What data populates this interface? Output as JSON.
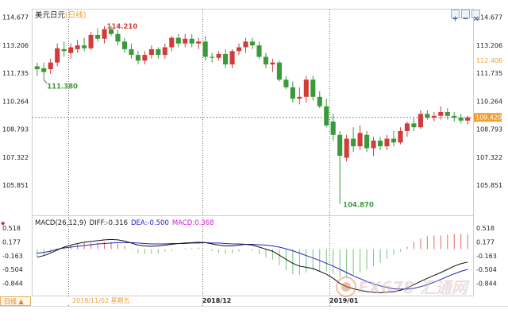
{
  "header": {
    "symbol": "美元日元",
    "timeframe": "(日线)"
  },
  "controls": [
    {
      "name": "zoom-in-button",
      "glyph": "+"
    },
    {
      "name": "zoom-out-button",
      "glyph": "−"
    },
    {
      "name": "close-button",
      "glyph": "×"
    }
  ],
  "footer": {
    "timeframe_tab": "日线 ▲",
    "tooltip_date": "2018/11/02 星期五"
  },
  "watermark": "FX678 汇通网",
  "colors": {
    "up": "#d33b3b",
    "down": "#3a9a3a",
    "dash": "#4aa0d5",
    "price_tag": "#f0a030",
    "current_tag": "#f0a030",
    "diff_line": "#111111",
    "dea_line": "#2323b8",
    "macd_label": "#cc22cc"
  },
  "chart_data": [
    {
      "type": "candlestick",
      "title": "美元日元(日线)",
      "ylim": [
        104.4,
        115.0
      ],
      "y_ticks": [
        "114.677",
        "113.206",
        "111.735",
        "110.264",
        "108.793",
        "107.322",
        "105.851"
      ],
      "x_ticks": [
        "2018/12",
        "2019/01"
      ],
      "annotations": {
        "high": "114.210",
        "low_left": "111.380",
        "low": "104.870"
      },
      "price_tag": "112.406",
      "current_price": "109.420",
      "candles": [
        {
          "o": 112.1,
          "h": 112.3,
          "l": 111.6,
          "c": 111.95
        },
        {
          "o": 112.0,
          "h": 112.3,
          "l": 111.38,
          "c": 111.8
        },
        {
          "o": 111.95,
          "h": 112.5,
          "l": 111.7,
          "c": 112.3
        },
        {
          "o": 112.3,
          "h": 113.3,
          "l": 112.1,
          "c": 113.05
        },
        {
          "o": 113.0,
          "h": 113.4,
          "l": 112.6,
          "c": 112.9
        },
        {
          "o": 112.8,
          "h": 113.3,
          "l": 112.5,
          "c": 113.1
        },
        {
          "o": 113.0,
          "h": 113.5,
          "l": 112.8,
          "c": 113.2
        },
        {
          "o": 113.2,
          "h": 113.6,
          "l": 112.9,
          "c": 113.05
        },
        {
          "o": 113.05,
          "h": 113.9,
          "l": 112.95,
          "c": 113.75
        },
        {
          "o": 113.75,
          "h": 114.1,
          "l": 113.4,
          "c": 113.55
        },
        {
          "o": 113.55,
          "h": 114.21,
          "l": 113.3,
          "c": 114.05
        },
        {
          "o": 114.05,
          "h": 114.21,
          "l": 113.7,
          "c": 113.8
        },
        {
          "o": 113.8,
          "h": 114.0,
          "l": 113.2,
          "c": 113.4
        },
        {
          "o": 113.4,
          "h": 113.6,
          "l": 112.8,
          "c": 113.0
        },
        {
          "o": 113.0,
          "h": 113.3,
          "l": 112.5,
          "c": 112.7
        },
        {
          "o": 112.7,
          "h": 112.9,
          "l": 112.2,
          "c": 112.4
        },
        {
          "o": 112.4,
          "h": 112.9,
          "l": 112.2,
          "c": 112.7
        },
        {
          "o": 112.7,
          "h": 113.2,
          "l": 112.5,
          "c": 113.0
        },
        {
          "o": 113.0,
          "h": 113.1,
          "l": 112.5,
          "c": 112.7
        },
        {
          "o": 112.7,
          "h": 113.3,
          "l": 112.5,
          "c": 113.1
        },
        {
          "o": 113.1,
          "h": 113.7,
          "l": 112.9,
          "c": 113.6
        },
        {
          "o": 113.6,
          "h": 113.8,
          "l": 113.1,
          "c": 113.3
        },
        {
          "o": 113.3,
          "h": 113.8,
          "l": 113.1,
          "c": 113.55
        },
        {
          "o": 113.55,
          "h": 113.8,
          "l": 113.1,
          "c": 113.3
        },
        {
          "o": 113.3,
          "h": 113.6,
          "l": 113.0,
          "c": 113.4
        },
        {
          "o": 113.4,
          "h": 113.7,
          "l": 112.4,
          "c": 112.6
        },
        {
          "o": 112.6,
          "h": 112.8,
          "l": 112.3,
          "c": 112.55
        },
        {
          "o": 112.55,
          "h": 112.9,
          "l": 112.4,
          "c": 112.75
        },
        {
          "o": 112.75,
          "h": 113.0,
          "l": 112.0,
          "c": 112.2
        },
        {
          "o": 112.2,
          "h": 113.0,
          "l": 112.0,
          "c": 112.9
        },
        {
          "o": 112.9,
          "h": 113.3,
          "l": 112.7,
          "c": 113.1
        },
        {
          "o": 113.1,
          "h": 113.6,
          "l": 112.8,
          "c": 113.4
        },
        {
          "o": 113.4,
          "h": 113.6,
          "l": 113.0,
          "c": 113.2
        },
        {
          "o": 113.2,
          "h": 113.4,
          "l": 112.5,
          "c": 112.6
        },
        {
          "o": 112.6,
          "h": 112.8,
          "l": 112.0,
          "c": 112.2
        },
        {
          "o": 112.2,
          "h": 112.5,
          "l": 111.8,
          "c": 112.3
        },
        {
          "o": 112.3,
          "h": 112.4,
          "l": 111.3,
          "c": 111.4
        },
        {
          "o": 111.4,
          "h": 111.6,
          "l": 110.9,
          "c": 111.0
        },
        {
          "o": 111.0,
          "h": 111.3,
          "l": 110.2,
          "c": 110.4
        },
        {
          "o": 110.4,
          "h": 111.0,
          "l": 110.1,
          "c": 110.5
        },
        {
          "o": 110.5,
          "h": 111.6,
          "l": 110.2,
          "c": 111.4
        },
        {
          "o": 111.4,
          "h": 111.6,
          "l": 110.3,
          "c": 110.5
        },
        {
          "o": 110.5,
          "h": 110.8,
          "l": 109.9,
          "c": 110.0
        },
        {
          "o": 110.0,
          "h": 110.4,
          "l": 108.9,
          "c": 109.0
        },
        {
          "o": 109.2,
          "h": 109.6,
          "l": 108.2,
          "c": 108.5
        },
        {
          "o": 108.5,
          "h": 108.7,
          "l": 104.87,
          "c": 107.4
        },
        {
          "o": 107.3,
          "h": 108.5,
          "l": 107.1,
          "c": 108.3
        },
        {
          "o": 108.3,
          "h": 108.9,
          "l": 107.6,
          "c": 107.9
        },
        {
          "o": 107.9,
          "h": 109.0,
          "l": 107.7,
          "c": 108.6
        },
        {
          "o": 108.5,
          "h": 108.7,
          "l": 107.6,
          "c": 107.8
        },
        {
          "o": 107.8,
          "h": 108.4,
          "l": 107.4,
          "c": 108.2
        },
        {
          "o": 108.2,
          "h": 108.4,
          "l": 107.7,
          "c": 107.9
        },
        {
          "o": 107.9,
          "h": 108.5,
          "l": 107.7,
          "c": 108.3
        },
        {
          "o": 108.3,
          "h": 108.7,
          "l": 107.9,
          "c": 108.1
        },
        {
          "o": 108.1,
          "h": 108.9,
          "l": 108.0,
          "c": 108.7
        },
        {
          "o": 108.7,
          "h": 109.2,
          "l": 108.4,
          "c": 109.1
        },
        {
          "o": 109.1,
          "h": 109.4,
          "l": 108.7,
          "c": 108.9
        },
        {
          "o": 108.9,
          "h": 109.8,
          "l": 108.8,
          "c": 109.6
        },
        {
          "o": 109.6,
          "h": 109.8,
          "l": 109.3,
          "c": 109.4
        },
        {
          "o": 109.4,
          "h": 109.7,
          "l": 109.2,
          "c": 109.5
        },
        {
          "o": 109.5,
          "h": 110.0,
          "l": 109.3,
          "c": 109.7
        },
        {
          "o": 109.7,
          "h": 109.9,
          "l": 109.3,
          "c": 109.5
        },
        {
          "o": 109.5,
          "h": 109.7,
          "l": 109.2,
          "c": 109.4
        },
        {
          "o": 109.4,
          "h": 109.6,
          "l": 109.1,
          "c": 109.25
        },
        {
          "o": 109.25,
          "h": 109.5,
          "l": 109.05,
          "c": 109.42
        }
      ]
    },
    {
      "type": "macd",
      "label": "MACD(26,12,9)",
      "diff_label": "DIFF:-0.316",
      "dea_label": "DEA:-0.500",
      "macd_label": "MACD:0.368",
      "ylim": [
        -1.15,
        0.7
      ],
      "y_ticks": [
        "0.518",
        "0.177",
        "-0.163",
        "-0.504",
        "-0.844"
      ],
      "diff": [
        -0.2,
        -0.16,
        -0.1,
        -0.02,
        0.05,
        0.1,
        0.14,
        0.17,
        0.19,
        0.21,
        0.23,
        0.24,
        0.23,
        0.2,
        0.15,
        0.1,
        0.08,
        0.07,
        0.08,
        0.1,
        0.12,
        0.14,
        0.15,
        0.16,
        0.17,
        0.16,
        0.13,
        0.1,
        0.08,
        0.08,
        0.1,
        0.12,
        0.1,
        0.05,
        0.0,
        -0.05,
        -0.15,
        -0.25,
        -0.35,
        -0.42,
        -0.45,
        -0.48,
        -0.55,
        -0.62,
        -0.72,
        -0.85,
        -0.93,
        -0.98,
        -1.02,
        -1.05,
        -1.07,
        -1.08,
        -1.07,
        -1.05,
        -1.02,
        -0.96,
        -0.88,
        -0.8,
        -0.72,
        -0.65,
        -0.58,
        -0.5,
        -0.42,
        -0.36,
        -0.32
      ],
      "dea": [
        -0.1,
        -0.08,
        -0.05,
        0.0,
        0.03,
        0.05,
        0.07,
        0.09,
        0.11,
        0.13,
        0.14,
        0.15,
        0.16,
        0.16,
        0.16,
        0.15,
        0.14,
        0.13,
        0.13,
        0.13,
        0.14,
        0.14,
        0.14,
        0.15,
        0.15,
        0.16,
        0.15,
        0.15,
        0.14,
        0.13,
        0.13,
        0.12,
        0.12,
        0.11,
        0.1,
        0.08,
        0.05,
        0.01,
        -0.04,
        -0.1,
        -0.16,
        -0.22,
        -0.28,
        -0.35,
        -0.42,
        -0.5,
        -0.58,
        -0.66,
        -0.73,
        -0.8,
        -0.86,
        -0.91,
        -0.95,
        -0.98,
        -0.99,
        -0.99,
        -0.97,
        -0.93,
        -0.88,
        -0.82,
        -0.75,
        -0.68,
        -0.61,
        -0.55,
        -0.5
      ],
      "hist": [
        -0.2,
        -0.16,
        -0.1,
        -0.04,
        0.04,
        0.1,
        0.14,
        0.16,
        0.16,
        0.16,
        0.18,
        0.18,
        0.14,
        0.08,
        -0.02,
        -0.1,
        -0.12,
        -0.12,
        -0.1,
        -0.06,
        -0.04,
        0.0,
        0.02,
        0.02,
        0.04,
        0.0,
        -0.04,
        -0.1,
        -0.12,
        -0.1,
        -0.06,
        0.0,
        -0.04,
        -0.12,
        -0.2,
        -0.26,
        -0.4,
        -0.52,
        -0.62,
        -0.64,
        -0.58,
        -0.52,
        -0.54,
        -0.54,
        -0.6,
        -0.7,
        -0.7,
        -0.64,
        -0.58,
        -0.5,
        -0.42,
        -0.34,
        -0.24,
        -0.14,
        -0.06,
        0.06,
        0.18,
        0.26,
        0.32,
        0.34,
        0.34,
        0.36,
        0.38,
        0.38,
        0.36
      ]
    }
  ]
}
